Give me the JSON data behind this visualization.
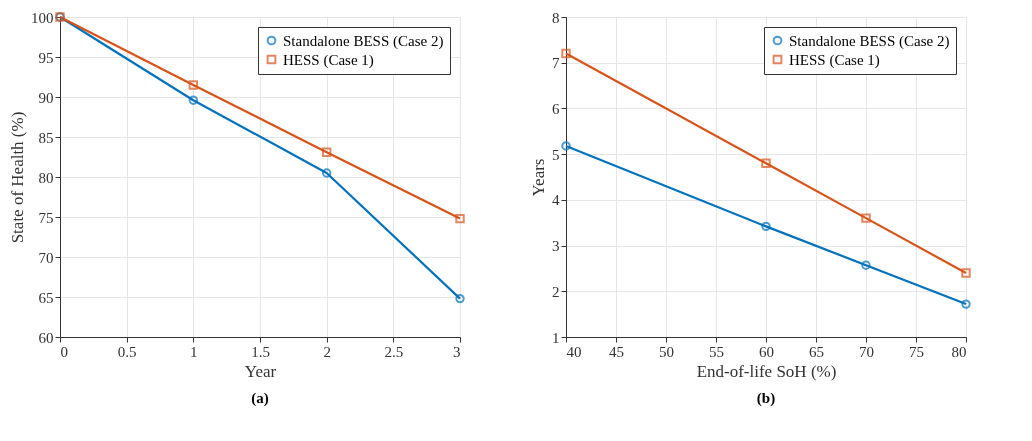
{
  "chart_data": [
    {
      "type": "line",
      "title": "(a)",
      "xlabel": "Year",
      "ylabel": "State of Health (%)",
      "x": [
        0,
        1,
        2,
        3
      ],
      "xlim": [
        0,
        3
      ],
      "xticks": [
        0,
        0.5,
        1,
        1.5,
        2,
        2.5,
        3
      ],
      "ylim": [
        60,
        100
      ],
      "yticks": [
        60,
        65,
        70,
        75,
        80,
        85,
        90,
        95,
        100
      ],
      "grid": true,
      "legend": "top right",
      "line_style": "solid",
      "series": [
        {
          "name": "Standalone BESS (Case 2)",
          "color": "#0072bd",
          "marker": "circle",
          "values": [
            100,
            89.6,
            80.5,
            64.8
          ]
        },
        {
          "name": "HESS (Case 1)",
          "color": "#d95319",
          "marker": "square",
          "values": [
            100,
            91.5,
            83.1,
            74.8
          ]
        }
      ]
    },
    {
      "type": "line",
      "title": "(b)",
      "xlabel": "End-of-life SoH (%)",
      "ylabel": "Years",
      "x": [
        40,
        60,
        70,
        80
      ],
      "xlim": [
        40,
        80
      ],
      "xticks": [
        40,
        45,
        50,
        55,
        60,
        65,
        70,
        75,
        80
      ],
      "ylim": [
        1,
        8
      ],
      "yticks": [
        1,
        2,
        3,
        4,
        5,
        6,
        7,
        8
      ],
      "grid": true,
      "legend": "top right",
      "line_style": "solid",
      "series": [
        {
          "name": "Standalone BESS (Case 2)",
          "color": "#0072bd",
          "marker": "circle",
          "values": [
            5.18,
            3.42,
            2.57,
            1.72
          ]
        },
        {
          "name": "HESS (Case 1)",
          "color": "#d95319",
          "marker": "square",
          "values": [
            7.2,
            4.8,
            3.6,
            2.4
          ]
        }
      ]
    }
  ]
}
